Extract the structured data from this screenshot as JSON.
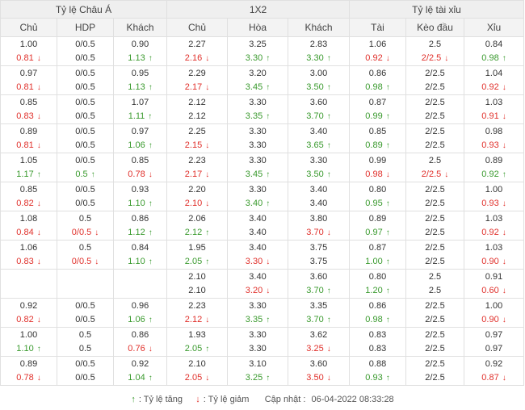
{
  "header": {
    "groups": [
      "Tỷ lệ Châu Á",
      "1X2",
      "Tỷ lệ tài xỉu"
    ],
    "columns": [
      "Chủ",
      "HDP",
      "Khách",
      "Chủ",
      "Hòa",
      "Khách",
      "Tài",
      "Kèo đầu",
      "Xỉu"
    ]
  },
  "colors": {
    "up": "#3a9a2e",
    "down": "#e0302b",
    "header_bg": "#efefef",
    "border": "#e0e0e0"
  },
  "rows": [
    [
      [
        "1.00",
        "0.81",
        "down"
      ],
      [
        "0/0.5",
        "0/0.5",
        ""
      ],
      [
        "0.90",
        "1.13",
        "up"
      ],
      [
        "2.27",
        "2.16",
        "down"
      ],
      [
        "3.25",
        "3.30",
        "up"
      ],
      [
        "2.83",
        "3.30",
        "up"
      ],
      [
        "1.06",
        "0.92",
        "down"
      ],
      [
        "2.5",
        "2/2.5",
        "down"
      ],
      [
        "0.84",
        "0.98",
        "up"
      ]
    ],
    [
      [
        "0.97",
        "0.81",
        "down"
      ],
      [
        "0/0.5",
        "0/0.5",
        ""
      ],
      [
        "0.95",
        "1.13",
        "up"
      ],
      [
        "2.29",
        "2.17",
        "down"
      ],
      [
        "3.20",
        "3.45",
        "up"
      ],
      [
        "3.00",
        "3.50",
        "up"
      ],
      [
        "0.86",
        "0.98",
        "up"
      ],
      [
        "2/2.5",
        "2/2.5",
        ""
      ],
      [
        "1.04",
        "0.92",
        "down"
      ]
    ],
    [
      [
        "0.85",
        "0.83",
        "down"
      ],
      [
        "0/0.5",
        "0/0.5",
        ""
      ],
      [
        "1.07",
        "1.11",
        "up"
      ],
      [
        "2.12",
        "2.12",
        ""
      ],
      [
        "3.30",
        "3.35",
        "up"
      ],
      [
        "3.60",
        "3.70",
        "up"
      ],
      [
        "0.87",
        "0.99",
        "up"
      ],
      [
        "2/2.5",
        "2/2.5",
        ""
      ],
      [
        "1.03",
        "0.91",
        "down"
      ]
    ],
    [
      [
        "0.89",
        "0.81",
        "down"
      ],
      [
        "0/0.5",
        "0/0.5",
        ""
      ],
      [
        "0.97",
        "1.06",
        "up"
      ],
      [
        "2.25",
        "2.15",
        "down"
      ],
      [
        "3.30",
        "3.30",
        ""
      ],
      [
        "3.40",
        "3.65",
        "up"
      ],
      [
        "0.85",
        "0.89",
        "up"
      ],
      [
        "2/2.5",
        "2/2.5",
        ""
      ],
      [
        "0.98",
        "0.93",
        "down"
      ]
    ],
    [
      [
        "1.05",
        "1.17",
        "up"
      ],
      [
        "0/0.5",
        "0.5",
        "up"
      ],
      [
        "0.85",
        "0.78",
        "down"
      ],
      [
        "2.23",
        "2.17",
        "down"
      ],
      [
        "3.30",
        "3.45",
        "up"
      ],
      [
        "3.30",
        "3.50",
        "up"
      ],
      [
        "0.99",
        "0.98",
        "down"
      ],
      [
        "2.5",
        "2/2.5",
        "down"
      ],
      [
        "0.89",
        "0.92",
        "up"
      ]
    ],
    [
      [
        "0.85",
        "0.82",
        "down"
      ],
      [
        "0/0.5",
        "0/0.5",
        ""
      ],
      [
        "0.93",
        "1.10",
        "up"
      ],
      [
        "2.20",
        "2.10",
        "down"
      ],
      [
        "3.30",
        "3.40",
        "up"
      ],
      [
        "3.40",
        "3.40",
        ""
      ],
      [
        "0.80",
        "0.95",
        "up"
      ],
      [
        "2/2.5",
        "2/2.5",
        ""
      ],
      [
        "1.00",
        "0.93",
        "down"
      ]
    ],
    [
      [
        "1.08",
        "0.84",
        "down"
      ],
      [
        "0.5",
        "0/0.5",
        "down"
      ],
      [
        "0.86",
        "1.12",
        "up"
      ],
      [
        "2.06",
        "2.12",
        "up"
      ],
      [
        "3.40",
        "3.40",
        ""
      ],
      [
        "3.80",
        "3.70",
        "down"
      ],
      [
        "0.89",
        "0.97",
        "up"
      ],
      [
        "2/2.5",
        "2/2.5",
        ""
      ],
      [
        "1.03",
        "0.92",
        "down"
      ]
    ],
    [
      [
        "1.06",
        "0.83",
        "down"
      ],
      [
        "0.5",
        "0/0.5",
        "down"
      ],
      [
        "0.84",
        "1.10",
        "up"
      ],
      [
        "1.95",
        "2.05",
        "up"
      ],
      [
        "3.40",
        "3.30",
        "down"
      ],
      [
        "3.75",
        "3.75",
        ""
      ],
      [
        "0.87",
        "1.00",
        "up"
      ],
      [
        "2/2.5",
        "2/2.5",
        ""
      ],
      [
        "1.03",
        "0.90",
        "down"
      ]
    ],
    [
      [
        "",
        "",
        ""
      ],
      [
        "",
        "",
        ""
      ],
      [
        "",
        "",
        ""
      ],
      [
        "2.10",
        "2.10",
        ""
      ],
      [
        "3.40",
        "3.20",
        "down"
      ],
      [
        "3.60",
        "3.70",
        "up"
      ],
      [
        "0.80",
        "1.20",
        "up"
      ],
      [
        "2.5",
        "2.5",
        ""
      ],
      [
        "0.91",
        "0.60",
        "down"
      ]
    ],
    [
      [
        "0.92",
        "0.82",
        "down"
      ],
      [
        "0/0.5",
        "0/0.5",
        ""
      ],
      [
        "0.96",
        "1.06",
        "up"
      ],
      [
        "2.23",
        "2.12",
        "down"
      ],
      [
        "3.30",
        "3.35",
        "up"
      ],
      [
        "3.35",
        "3.70",
        "up"
      ],
      [
        "0.86",
        "0.98",
        "up"
      ],
      [
        "2/2.5",
        "2/2.5",
        ""
      ],
      [
        "1.00",
        "0.90",
        "down"
      ]
    ],
    [
      [
        "1.00",
        "1.10",
        "up"
      ],
      [
        "0.5",
        "0.5",
        ""
      ],
      [
        "0.86",
        "0.76",
        "down"
      ],
      [
        "1.93",
        "2.05",
        "up"
      ],
      [
        "3.30",
        "3.30",
        ""
      ],
      [
        "3.62",
        "3.25",
        "down"
      ],
      [
        "0.83",
        "0.83",
        ""
      ],
      [
        "2/2.5",
        "2/2.5",
        ""
      ],
      [
        "0.97",
        "0.97",
        ""
      ]
    ],
    [
      [
        "0.89",
        "0.78",
        "down"
      ],
      [
        "0/0.5",
        "0/0.5",
        ""
      ],
      [
        "0.92",
        "1.04",
        "up"
      ],
      [
        "2.10",
        "2.05",
        "down"
      ],
      [
        "3.10",
        "3.25",
        "up"
      ],
      [
        "3.60",
        "3.50",
        "down"
      ],
      [
        "0.88",
        "0.93",
        "up"
      ],
      [
        "2/2.5",
        "2/2.5",
        ""
      ],
      [
        "0.92",
        "0.87",
        "down"
      ]
    ]
  ],
  "legend": {
    "up_label": ": Tỷ lệ tăng",
    "down_label": ": Tỷ lệ giảm",
    "updated_label": "Cập nhật :",
    "updated_value": "06-04-2022 08:33:28"
  }
}
